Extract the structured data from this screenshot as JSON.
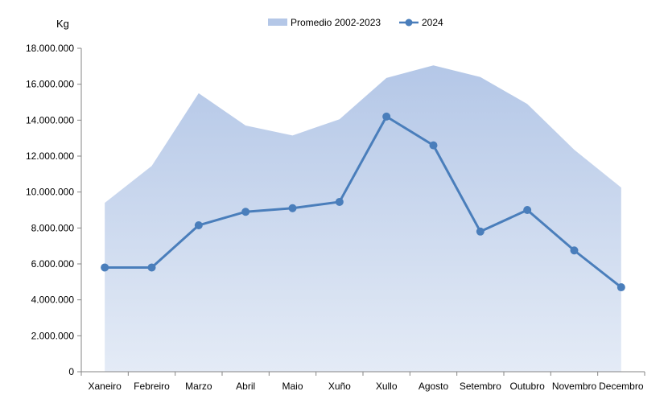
{
  "chart_data": {
    "type": "area",
    "unit_label": "Kg",
    "categories": [
      "Xaneiro",
      "Febreiro",
      "Marzo",
      "Abril",
      "Maio",
      "Xuño",
      "Xullo",
      "Agosto",
      "Setembro",
      "Outubro",
      "Novembro",
      "Decembro"
    ],
    "y_tick_labels": [
      "0",
      "2.000.000",
      "4.000.000",
      "6.000.000",
      "8.000.000",
      "10.000.000",
      "12.000.000",
      "14.000.000",
      "16.000.000",
      "18.000.000"
    ],
    "ylim": [
      0,
      18000000
    ],
    "y_step": 2000000,
    "grid": false,
    "legend_position": "top",
    "series": [
      {
        "name": "Promedio 2002-2023",
        "kind": "area",
        "color": "#b4c7e7",
        "values": [
          9400000,
          11450000,
          15500000,
          13700000,
          13150000,
          14050000,
          16350000,
          17050000,
          16400000,
          14900000,
          12350000,
          10250000
        ]
      },
      {
        "name": "2024",
        "kind": "line",
        "color": "#4a7ebb",
        "values": [
          5800000,
          5800000,
          8150000,
          8900000,
          9100000,
          9450000,
          14200000,
          12600000,
          7800000,
          9000000,
          6750000,
          4700000
        ]
      }
    ]
  }
}
